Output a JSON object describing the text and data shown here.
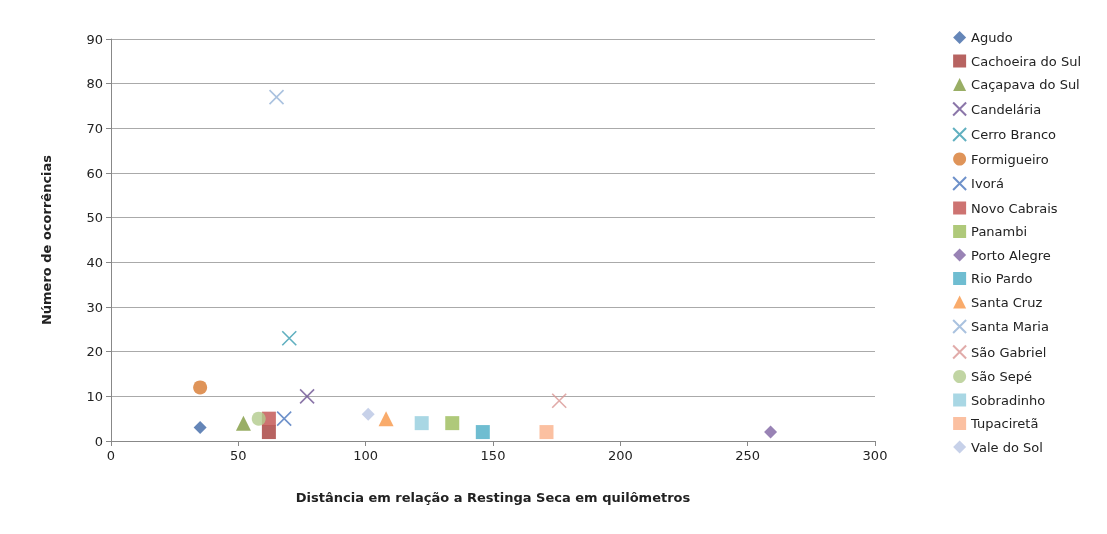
{
  "chart_data": {
    "type": "scatter",
    "xlabel": "Distância em relação a Restinga Seca em quilômetros",
    "ylabel": "Número de ocorrências",
    "xlim": [
      0,
      300
    ],
    "xticks": [
      0,
      50,
      100,
      150,
      200,
      250,
      300
    ],
    "ylim": [
      0,
      90
    ],
    "yticks": [
      0,
      10,
      20,
      30,
      40,
      50,
      60,
      70,
      80,
      90
    ],
    "grid": "y",
    "legend": "right",
    "series": [
      {
        "name": "Agudo",
        "color": "#3e68a6",
        "marker": "diamond",
        "x": [
          35
        ],
        "values": [
          3
        ]
      },
      {
        "name": "Cachoeira do Sul",
        "color": "#a53c3a",
        "marker": "square",
        "x": [
          62
        ],
        "values": [
          2
        ]
      },
      {
        "name": "Caçapava do Sul",
        "color": "#7f9a3f",
        "marker": "triangle",
        "x": [
          52
        ],
        "values": [
          4
        ]
      },
      {
        "name": "Candelária",
        "color": "#6e5494",
        "marker": "cross",
        "x": [
          77
        ],
        "values": [
          10
        ]
      },
      {
        "name": "Cerro Branco",
        "color": "#3a9cb0",
        "marker": "cross",
        "x": [
          70
        ],
        "values": [
          23
        ]
      },
      {
        "name": "Formigueiro",
        "color": "#d7792f",
        "marker": "circle",
        "x": [
          35
        ],
        "values": [
          12
        ]
      },
      {
        "name": "Ivorá",
        "color": "#4a76bd",
        "marker": "cross",
        "x": [
          68
        ],
        "values": [
          5
        ]
      },
      {
        "name": "Novo Cabrais",
        "color": "#c0504d",
        "marker": "square",
        "x": [
          62
        ],
        "values": [
          5
        ]
      },
      {
        "name": "Panambi",
        "color": "#9bbb59",
        "marker": "square",
        "x": [
          134
        ],
        "values": [
          4
        ]
      },
      {
        "name": "Porto Alegre",
        "color": "#8064a2",
        "marker": "diamond",
        "x": [
          259
        ],
        "values": [
          2
        ]
      },
      {
        "name": "Rio Pardo",
        "color": "#4bacc6",
        "marker": "square",
        "x": [
          146
        ],
        "values": [
          2
        ]
      },
      {
        "name": "Santa Cruz",
        "color": "#f79646",
        "marker": "triangle",
        "x": [
          108
        ],
        "values": [
          5
        ]
      },
      {
        "name": "Santa Maria",
        "color": "#95b3d7",
        "marker": "cross",
        "x": [
          65
        ],
        "values": [
          77
        ]
      },
      {
        "name": "São Gabriel",
        "color": "#d99694",
        "marker": "cross",
        "x": [
          176
        ],
        "values": [
          9
        ]
      },
      {
        "name": "São Sepé",
        "color": "#b2cb8c",
        "marker": "circle",
        "x": [
          58
        ],
        "values": [
          5
        ]
      },
      {
        "name": "Sobradinho",
        "color": "#93cddd",
        "marker": "square",
        "x": [
          122
        ],
        "values": [
          4
        ]
      },
      {
        "name": "Tupaciretã",
        "color": "#fab08a",
        "marker": "square",
        "x": [
          171
        ],
        "values": [
          2
        ]
      },
      {
        "name": "Vale do Sol",
        "color": "#b9c6e3",
        "marker": "diamond",
        "x": [
          101
        ],
        "values": [
          6
        ]
      }
    ]
  }
}
